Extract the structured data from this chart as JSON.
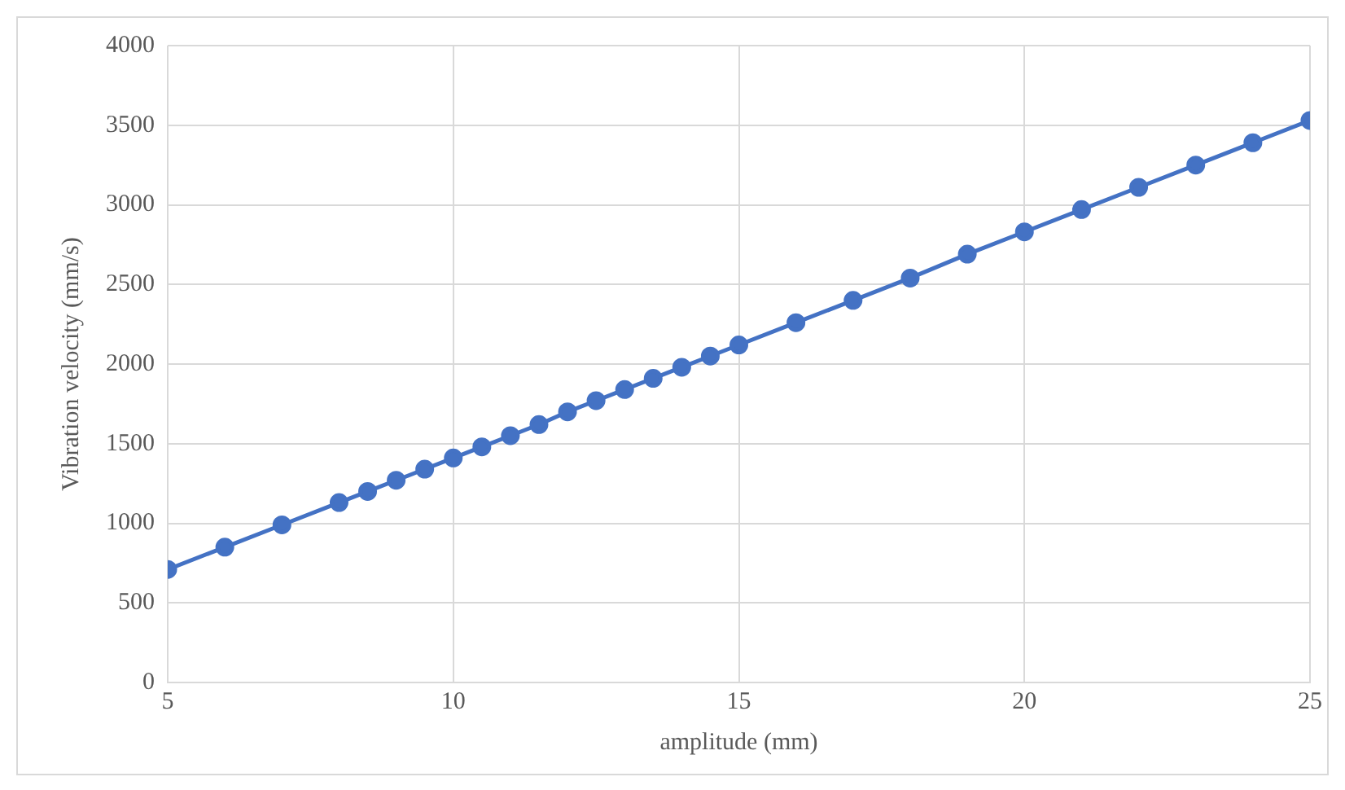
{
  "chart_data": {
    "type": "line",
    "xlabel": "amplitude (mm)",
    "ylabel": "Vibration velocity (mm/s)",
    "x": [
      5,
      6,
      7,
      8,
      8.5,
      9,
      9.5,
      10,
      10.5,
      11,
      11.5,
      12,
      12.5,
      13,
      13.5,
      14,
      14.5,
      15,
      16,
      17,
      18,
      19,
      20,
      21,
      22,
      23,
      24,
      25
    ],
    "series": [
      {
        "color": "#4472c4",
        "values": [
          710,
          850,
          990,
          1130,
          1200,
          1270,
          1340,
          1410,
          1480,
          1550,
          1620,
          1700,
          1770,
          1840,
          1910,
          1980,
          2050,
          2120,
          2260,
          2400,
          2540,
          2690,
          2830,
          2970,
          3110,
          3250,
          3390,
          3530
        ]
      }
    ],
    "xlim": [
      5,
      25
    ],
    "xticks": [
      5,
      10,
      15,
      20,
      25
    ],
    "ylim": [
      0,
      4000
    ],
    "yticks": [
      0,
      500,
      1000,
      1500,
      2000,
      2500,
      3000,
      3500,
      4000
    ],
    "grid": true,
    "marker": "circle",
    "line_style": "solid",
    "legend": false
  }
}
